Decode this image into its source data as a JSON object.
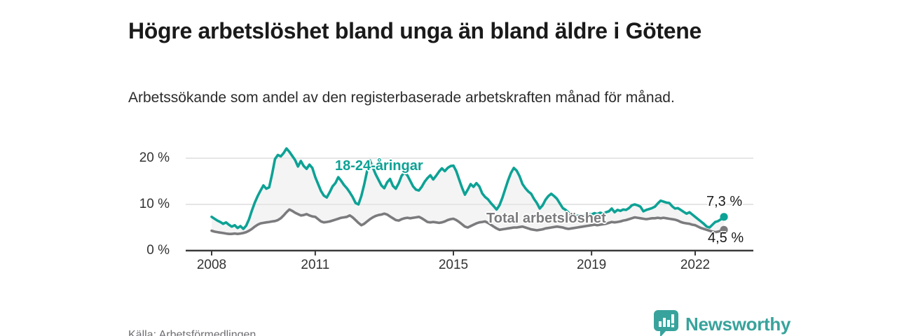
{
  "meta": {
    "title": "Högre arbetslöshet bland unga än bland äldre i Götene",
    "subtitle": "Arbetssökande som andel av den registerbaserade arbetskraften månad för månad.",
    "source": "Källa: Arbetsförmedlingen"
  },
  "branding": {
    "logo_text": "Newsworthy",
    "logo_color": "#38a39c"
  },
  "colors": {
    "young_line": "#0da295",
    "total_line": "#7b7b7e",
    "grid": "#e1e1e2",
    "axis": "#3a3a3a",
    "band_fill": "#f4f4f5",
    "text_dark": "#1a1a1a"
  },
  "chart_data": {
    "type": "line",
    "title": "Högre arbetslöshet bland unga än bland äldre i Götene",
    "subtitle": "Arbetssökande som andel av den registerbaserade arbetskraften månad för månad.",
    "x_unit": "month",
    "x_start": "2008-01",
    "x_end": "2022-11",
    "x_ticks": [
      2008,
      2011,
      2015,
      2019,
      2022
    ],
    "y_ticks": [
      {
        "value": 0,
        "label": "0 %"
      },
      {
        "value": 10,
        "label": "10 %"
      },
      {
        "value": 20,
        "label": "20 %"
      }
    ],
    "ylim": [
      0,
      23
    ],
    "grid": true,
    "legend_position": "inline-labels",
    "band_fill_between_series": true,
    "series": [
      {
        "name": "18-24-åringar",
        "color": "#0da295",
        "end_label": "7,3 %",
        "end_value": 7.3,
        "values": [
          7.3,
          6.9,
          6.5,
          6.2,
          5.8,
          6.1,
          5.6,
          5.2,
          5.5,
          4.9,
          5.3,
          4.7,
          5.4,
          6.8,
          8.7,
          10.4,
          11.8,
          13.0,
          14.1,
          13.4,
          13.7,
          16.5,
          19.8,
          20.7,
          20.4,
          21.1,
          22.1,
          21.4,
          20.5,
          19.6,
          18.2,
          19.4,
          18.3,
          17.7,
          18.6,
          17.9,
          15.9,
          14.4,
          12.9,
          11.9,
          11.5,
          12.6,
          13.9,
          14.6,
          15.9,
          15.1,
          14.2,
          13.5,
          12.6,
          11.6,
          10.3,
          10.0,
          11.8,
          14.3,
          17.2,
          19.5,
          18.0,
          16.5,
          15.3,
          14.1,
          13.5,
          14.8,
          15.5,
          14.0,
          13.4,
          14.6,
          16.2,
          16.9,
          16.3,
          15.1,
          13.9,
          13.2,
          13.0,
          13.8,
          14.9,
          15.7,
          16.3,
          15.4,
          16.2,
          17.1,
          17.8,
          17.2,
          17.9,
          18.3,
          18.4,
          17.2,
          15.4,
          13.6,
          12.1,
          13.2,
          14.4,
          13.8,
          14.6,
          13.9,
          12.4,
          11.6,
          11.1,
          10.3,
          9.6,
          8.9,
          9.8,
          11.4,
          13.3,
          15.2,
          16.8,
          17.9,
          17.3,
          16.1,
          14.4,
          13.5,
          12.8,
          12.3,
          11.2,
          10.3,
          9.1,
          9.8,
          11.0,
          11.8,
          12.3,
          11.8,
          11.2,
          10.2,
          9.2,
          8.8,
          8.2,
          7.6,
          7.3,
          7.5,
          7.7,
          7.4,
          7.6,
          7.9,
          7.8,
          8.1,
          7.9,
          8.2,
          8.0,
          8.3,
          8.5,
          9.1,
          8.3,
          8.8,
          8.6,
          8.9,
          8.8,
          9.2,
          9.8,
          10.0,
          9.8,
          9.5,
          8.5,
          8.8,
          9.0,
          9.2,
          9.5,
          10.2,
          10.8,
          10.6,
          10.4,
          10.3,
          9.6,
          9.1,
          9.2,
          8.8,
          8.4,
          8.0,
          8.3,
          7.8,
          7.3,
          6.8,
          6.3,
          5.8,
          5.2,
          5.0,
          5.6,
          6.2,
          6.4,
          6.8,
          7.3
        ]
      },
      {
        "name": "Total arbetslöshet",
        "color": "#7b7b7e",
        "end_label": "4,5 %",
        "end_value": 4.5,
        "values": [
          4.3,
          4.1,
          4.0,
          3.9,
          3.8,
          3.7,
          3.6,
          3.6,
          3.7,
          3.6,
          3.7,
          3.8,
          4.0,
          4.3,
          4.7,
          5.2,
          5.6,
          5.9,
          6.0,
          6.1,
          6.2,
          6.3,
          6.4,
          6.6,
          7.0,
          7.6,
          8.3,
          8.9,
          8.6,
          8.2,
          7.9,
          7.6,
          7.7,
          7.9,
          7.6,
          7.4,
          7.3,
          6.8,
          6.3,
          6.1,
          6.2,
          6.3,
          6.5,
          6.7,
          6.9,
          7.1,
          7.2,
          7.3,
          7.6,
          7.2,
          6.6,
          6.0,
          5.5,
          5.8,
          6.3,
          6.8,
          7.2,
          7.5,
          7.7,
          7.8,
          8.0,
          7.8,
          7.4,
          7.0,
          6.6,
          6.5,
          6.8,
          7.0,
          7.1,
          7.0,
          7.1,
          7.2,
          7.3,
          7.0,
          6.6,
          6.2,
          6.1,
          6.2,
          6.1,
          6.0,
          6.1,
          6.3,
          6.6,
          6.8,
          6.9,
          6.6,
          6.2,
          5.7,
          5.2,
          5.0,
          5.3,
          5.6,
          5.9,
          6.1,
          6.2,
          6.3,
          6.0,
          5.6,
          5.2,
          4.8,
          4.5,
          4.6,
          4.7,
          4.8,
          4.9,
          5.0,
          5.0,
          5.1,
          5.2,
          5.0,
          4.8,
          4.6,
          4.5,
          4.4,
          4.5,
          4.6,
          4.8,
          4.9,
          5.0,
          5.1,
          5.2,
          5.1,
          5.0,
          4.8,
          4.7,
          4.8,
          4.9,
          5.0,
          5.1,
          5.2,
          5.3,
          5.4,
          5.5,
          5.6,
          5.5,
          5.6,
          5.7,
          5.8,
          6.0,
          6.2,
          6.1,
          6.2,
          6.3,
          6.5,
          6.6,
          6.8,
          7.0,
          7.2,
          7.1,
          7.0,
          6.9,
          6.8,
          6.9,
          7.0,
          7.0,
          7.1,
          7.0,
          7.1,
          7.0,
          6.9,
          6.8,
          6.7,
          6.5,
          6.2,
          6.0,
          5.9,
          5.8,
          5.6,
          5.5,
          5.2,
          4.9,
          4.7,
          4.5,
          4.3,
          4.1,
          4.0,
          4.1,
          4.3,
          4.5
        ]
      }
    ]
  }
}
